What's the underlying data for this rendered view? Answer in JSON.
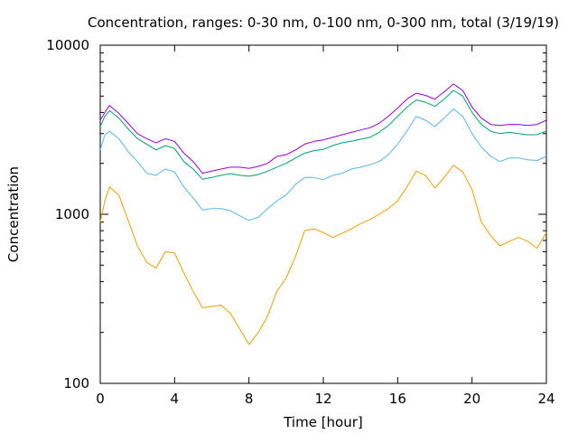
{
  "chart_data": {
    "type": "line",
    "title": "Concentration, ranges: 0-30 nm, 0-100 nm, 0-300 nm, total (3/19/19)",
    "xlabel": "Time [hour]",
    "ylabel": "Concentration",
    "xlim": [
      0,
      24
    ],
    "ylim": [
      100,
      10000
    ],
    "yscale": "log",
    "xticks": [
      0,
      4,
      8,
      12,
      16,
      20,
      24
    ],
    "yticks": [
      100,
      1000,
      10000
    ],
    "grid": false,
    "legend": "none",
    "x": [
      0,
      0.25,
      0.5,
      1,
      1.5,
      2,
      2.5,
      3,
      3.5,
      4,
      4.5,
      5,
      5.5,
      6,
      6.5,
      7,
      7.5,
      8,
      8.5,
      9,
      9.5,
      10,
      10.5,
      11,
      11.5,
      12,
      12.5,
      13,
      13.5,
      14,
      14.5,
      15,
      15.5,
      16,
      16.5,
      17,
      17.5,
      18,
      18.5,
      19,
      19.5,
      20,
      20.5,
      21,
      21.5,
      22,
      22.5,
      23,
      23.5,
      24
    ],
    "series": [
      {
        "color": "#e69f00",
        "values": [
          900,
          1200,
          1450,
          1300,
          920,
          650,
          520,
          480,
          600,
          590,
          450,
          350,
          280,
          285,
          290,
          260,
          210,
          170,
          200,
          250,
          350,
          420,
          560,
          800,
          820,
          780,
          730,
          770,
          820,
          880,
          930,
          1000,
          1080,
          1200,
          1450,
          1800,
          1700,
          1430,
          1650,
          1950,
          1780,
          1400,
          900,
          750,
          650,
          690,
          730,
          690,
          630,
          780
        ]
      },
      {
        "color": "#56b4e9",
        "values": [
          2400,
          2950,
          3100,
          2800,
          2350,
          2050,
          1750,
          1700,
          1850,
          1780,
          1450,
          1250,
          1060,
          1080,
          1080,
          1050,
          980,
          920,
          960,
          1080,
          1200,
          1300,
          1500,
          1650,
          1650,
          1600,
          1700,
          1750,
          1850,
          1900,
          1960,
          2050,
          2250,
          2600,
          3100,
          3800,
          3600,
          3300,
          3700,
          4200,
          3800,
          3000,
          2500,
          2200,
          2050,
          2150,
          2150,
          2100,
          2080,
          2200
        ]
      },
      {
        "color": "#009e73",
        "values": [
          3300,
          3800,
          4100,
          3700,
          3200,
          2800,
          2600,
          2400,
          2550,
          2450,
          2050,
          1850,
          1610,
          1650,
          1700,
          1740,
          1700,
          1680,
          1720,
          1800,
          1900,
          2000,
          2150,
          2300,
          2380,
          2420,
          2550,
          2650,
          2700,
          2780,
          2850,
          3050,
          3350,
          3800,
          4300,
          4750,
          4600,
          4350,
          4800,
          5400,
          5000,
          4000,
          3400,
          3100,
          3000,
          3050,
          3000,
          2950,
          2960,
          3100
        ]
      },
      {
        "color": "#9400d3",
        "values": [
          3600,
          4000,
          4400,
          3950,
          3450,
          3000,
          2800,
          2650,
          2800,
          2700,
          2300,
          2050,
          1750,
          1800,
          1850,
          1900,
          1900,
          1870,
          1920,
          2000,
          2200,
          2250,
          2400,
          2600,
          2700,
          2750,
          2850,
          2950,
          3050,
          3150,
          3250,
          3450,
          3800,
          4250,
          4800,
          5200,
          5050,
          4800,
          5300,
          5900,
          5400,
          4300,
          3700,
          3400,
          3350,
          3400,
          3400,
          3350,
          3400,
          3600
        ]
      }
    ]
  }
}
